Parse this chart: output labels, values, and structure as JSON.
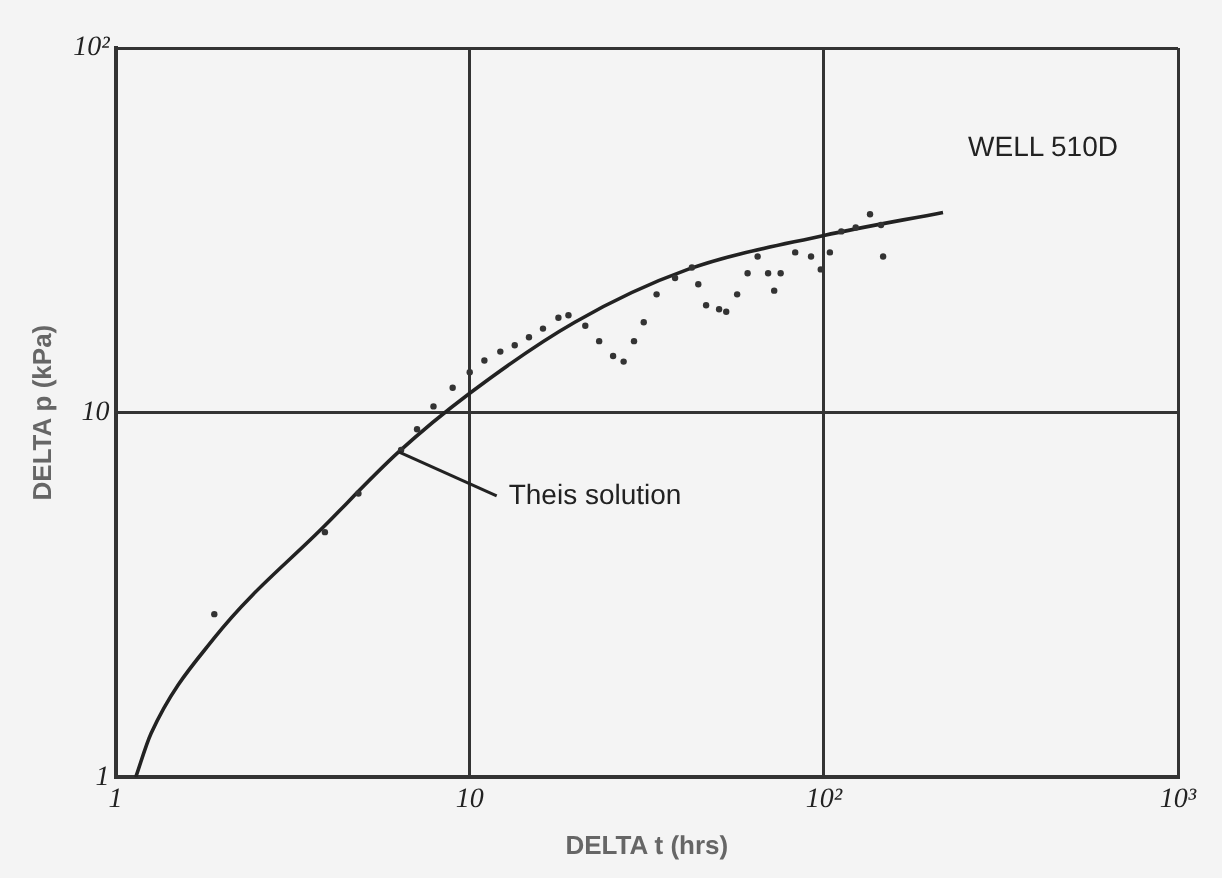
{
  "chart_data": {
    "type": "scatter",
    "xlabel": "DELTA t (hrs)",
    "ylabel": "DELTA p (kPa)",
    "log": "xy",
    "grid": true,
    "legend": false,
    "xlim": [
      1,
      1000
    ],
    "ylim": [
      1,
      100
    ],
    "xticks": [
      {
        "value": 1,
        "label": "1"
      },
      {
        "value": 10,
        "label": "10"
      },
      {
        "value": 100,
        "label": "10²"
      },
      {
        "value": 1000,
        "label": "10³"
      }
    ],
    "yticks": [
      {
        "value": 1,
        "label": "1"
      },
      {
        "value": 10,
        "label": "10"
      },
      {
        "value": 100,
        "label": "10²"
      }
    ],
    "series": [
      {
        "color": "#333333",
        "marker": "circle",
        "x": [
          1.9,
          3.9,
          4.85,
          6.4,
          7.1,
          7.9,
          8.95,
          10,
          11,
          12.2,
          13.4,
          14.7,
          16.1,
          17.8,
          19,
          21.2,
          23.2,
          25.4,
          27.2,
          29.1,
          31,
          33.7,
          38,
          42.4,
          44.2,
          46.5,
          50.6,
          53,
          56.9,
          60.9,
          65,
          69.6,
          72.4,
          75.5,
          83,
          92,
          98,
          104,
          112,
          123,
          135,
          145,
          147
        ],
        "values": [
          2.8,
          4.7,
          6.0,
          7.9,
          9.0,
          10.4,
          11.7,
          12.9,
          13.9,
          14.7,
          15.3,
          16.1,
          17.0,
          18.2,
          18.5,
          17.3,
          15.7,
          14.3,
          13.8,
          15.7,
          17.7,
          21.1,
          23.4,
          25.0,
          22.5,
          19.7,
          19.2,
          18.9,
          21.1,
          24.1,
          26.8,
          24.1,
          21.6,
          24.1,
          27.5,
          26.8,
          24.7,
          27.5,
          31.4,
          32.2,
          35.0,
          32.7,
          26.8
        ]
      },
      {
        "type": "line",
        "color": "#222222",
        "marker": "none",
        "line_style": "solid",
        "x": [
          1.14,
          1.26,
          1.9,
          3.9,
          6.3,
          10,
          19.8,
          41.3,
          100,
          217
        ],
        "values": [
          1,
          1.32,
          2.41,
          4.9,
          7.8,
          11.3,
          17.7,
          24.7,
          30.6,
          35.4
        ]
      }
    ],
    "annotations": [
      "WELL 510D",
      {
        "text": "Theis solution",
        "x": 6.3,
        "y": 7.8
      }
    ]
  }
}
